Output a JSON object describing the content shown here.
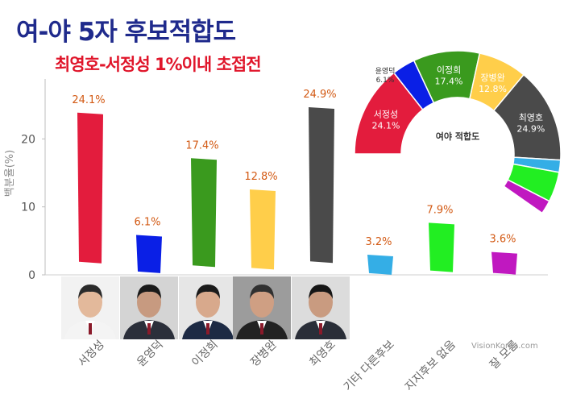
{
  "title": "여-야 5자 후보적합도",
  "subtitle": "최영호-서정성 1%이내 초접전",
  "watermark": "VisionKorea.com",
  "chart_data": {
    "type": "bar",
    "ylabel": "백분율(%)",
    "ylim": [
      0,
      30
    ],
    "yticks": [
      0,
      10,
      20
    ],
    "categories": [
      "서정성",
      "윤영덕",
      "이정희",
      "장병완",
      "최영호",
      "기타 다른후보",
      "지지후보 없음",
      "잘 모름"
    ],
    "values": [
      24.1,
      6.1,
      17.4,
      12.8,
      24.9,
      3.2,
      7.9,
      3.6
    ],
    "value_labels": [
      "24.1%",
      "6.1%",
      "17.4%",
      "12.8%",
      "24.9%",
      "3.2%",
      "7.9%",
      "3.6%"
    ],
    "colors": [
      "#e31c3d",
      "#0a1fe6",
      "#3a9a1e",
      "#ffce4a",
      "#4a4a4a",
      "#34aee6",
      "#22ee22",
      "#c018c0"
    ],
    "grid": false
  },
  "donut": {
    "center_label": "여야 적합도",
    "slices": [
      {
        "name": "서정성",
        "value": 24.1,
        "label": "24.1%",
        "color": "#e31c3d"
      },
      {
        "name": "윤영덕",
        "value": 6.1,
        "label": "6.1%",
        "color": "#0a1fe6"
      },
      {
        "name": "이정희",
        "value": 17.4,
        "label": "17.4%",
        "color": "#3a9a1e"
      },
      {
        "name": "장병완",
        "value": 12.8,
        "label": "12.8%",
        "color": "#ffce4a"
      },
      {
        "name": "최영호",
        "value": 24.9,
        "label": "24.9%",
        "color": "#4a4a4a"
      },
      {
        "name": "기타 다른후보",
        "value": 3.2,
        "color": "#34aee6"
      },
      {
        "name": "지지후보 없음",
        "value": 7.9,
        "color": "#22ee22"
      },
      {
        "name": "잘 모름",
        "value": 3.6,
        "color": "#c018c0"
      }
    ]
  },
  "photos": [
    {
      "name": "서정성",
      "bg": "#f2f2f2",
      "suit": "#f4f4f4",
      "face": "#e3b99b",
      "hair": "#2b2b2b"
    },
    {
      "name": "윤영덕",
      "bg": "#d4d4d4",
      "suit": "#2b2f3a",
      "face": "#c79a80",
      "hair": "#1a1a1a"
    },
    {
      "name": "이정희",
      "bg": "#e6e6e6",
      "suit": "#1d2a44",
      "face": "#d8a98c",
      "hair": "#1b1b1b"
    },
    {
      "name": "장병완",
      "bg": "#9c9c9c",
      "suit": "#222222",
      "face": "#cf9f83",
      "hair": "#303030"
    },
    {
      "name": "최영호",
      "bg": "#dcdcdc",
      "suit": "#2a2e38",
      "face": "#c99b80",
      "hair": "#161616"
    }
  ]
}
